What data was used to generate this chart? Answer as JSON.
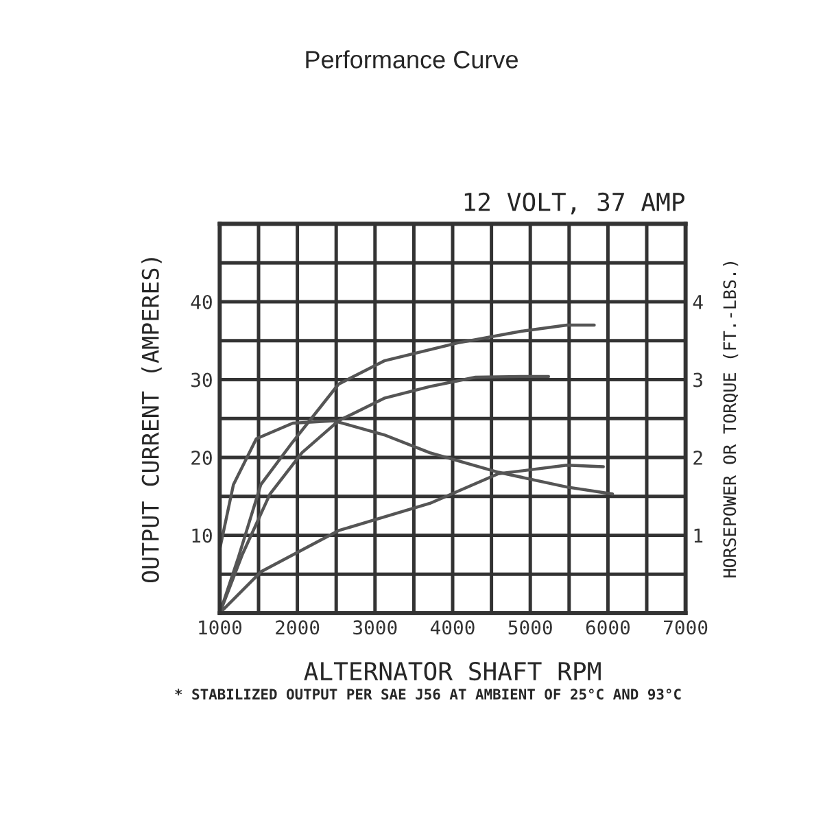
{
  "chart_data": {
    "type": "line",
    "title": "Performance Curve",
    "xlabel": "ALTERNATOR SHAFT RPM",
    "ylabel": "OUTPUT CURRENT (AMPERES)",
    "y2label": "HORSEPOWER OR TORQUE (FT.-LBS.)",
    "annotations": [
      "12 VOLT, 37 AMP",
      "* STABILIZED OUTPUT PER SAE J56 AT AMBIENT OF 25°C AND 93°C"
    ],
    "series": [
      {
        "color": "#555555",
        "x": [
          1000,
          1235,
          1529,
          1941,
          2529,
          3118,
          4059,
          4882,
          5471,
          5824
        ],
        "values": [
          0,
          7,
          16.5,
          22,
          29.4,
          32.4,
          34.7,
          36.2,
          37,
          37
        ]
      },
      {
        "color": "#555555",
        "x": [
          1000,
          1294,
          1647,
          2059,
          2529,
          3118,
          3706,
          4294,
          4882,
          5235
        ],
        "values": [
          0,
          7.6,
          15.3,
          20.6,
          24.7,
          27.6,
          29.1,
          30.3,
          30.4,
          30.4
        ]
      },
      {
        "color": "#555555",
        "axis": "y2",
        "x": [
          1000,
          1176,
          1471,
          1941,
          2471,
          3118,
          3706,
          4588,
          5471,
          6059
        ],
        "values": [
          0.82,
          1.65,
          2.24,
          2.44,
          2.47,
          2.29,
          2.06,
          1.81,
          1.62,
          1.53
        ]
      },
      {
        "color": "#555555",
        "axis": "y2",
        "x": [
          1000,
          1529,
          2529,
          3706,
          4588,
          5471,
          5941
        ],
        "values": [
          0,
          0.53,
          1.06,
          1.41,
          1.79,
          1.9,
          1.88
        ]
      }
    ],
    "xlim": [
      1000,
      7000
    ],
    "xticks": [
      1000,
      {
        "value": 1500,
        "label": null
      },
      2000,
      {
        "value": 2500,
        "label": null
      },
      3000,
      {
        "value": 3500,
        "label": null
      },
      4000,
      {
        "value": 4500,
        "label": null
      },
      5000,
      {
        "value": 5500,
        "label": null
      },
      6000,
      {
        "value": 6500,
        "label": null
      },
      7000
    ],
    "ylim": [
      0,
      50
    ],
    "yticks": [
      {
        "value": 0,
        "label": null
      },
      {
        "value": 5,
        "label": null
      },
      10,
      {
        "value": 15,
        "label": null
      },
      20,
      {
        "value": 25,
        "label": null
      },
      30,
      {
        "value": 35,
        "label": null
      },
      40,
      {
        "value": 45,
        "label": null
      },
      {
        "value": 50,
        "label": null
      }
    ],
    "y2lim": [
      0,
      5
    ],
    "y2ticks": [
      1,
      2,
      3,
      4
    ],
    "grid": true,
    "marker": "none",
    "line_style": "solid"
  }
}
